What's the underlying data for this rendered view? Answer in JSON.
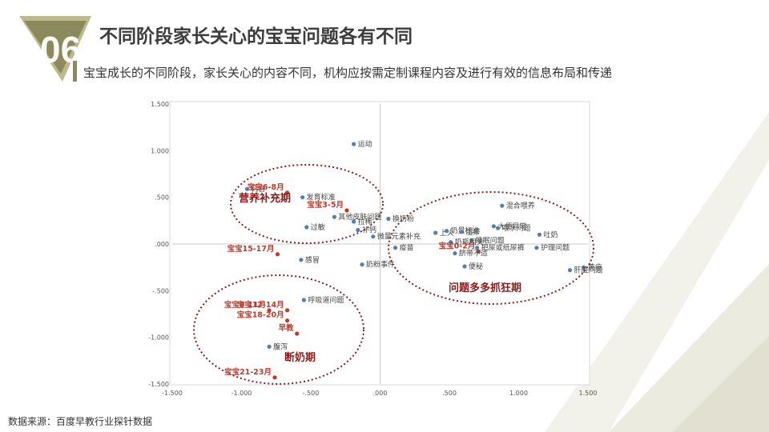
{
  "page": {
    "badge_number": "06",
    "title": "不同阶段家长关心的宝宝问题各有不同",
    "subtitle": "宝宝成长的不同阶段，家长关心的内容不同，机构应按需定制课程内容及进行有效的信息布局和传递",
    "source": "数据来源：百度早教行业探针数据",
    "colors": {
      "accent": "#8a8a5c",
      "point_blue": "#4f7fb6",
      "point_red": "#c0392b",
      "ellipse": "#8b1a1a"
    }
  },
  "chart_data": {
    "type": "scatter",
    "xlim": [
      -1.5,
      1.5
    ],
    "ylim": [
      -1.5,
      1.5
    ],
    "x_ticks": [
      "-1.500",
      "-1.000",
      "-.500",
      ".000",
      ".500",
      "1.000",
      "1.500"
    ],
    "y_ticks": [
      "1.500",
      "1.000",
      ".500",
      ".000",
      "-.500",
      "-1.000",
      "-1.500"
    ],
    "points": [
      {
        "label": "运动",
        "x": -0.19,
        "y": 1.07,
        "kind": "topic"
      },
      {
        "label": "钙含",
        "x": -0.96,
        "y": 0.59,
        "kind": "topic"
      },
      {
        "label": "宝宝6-8月",
        "x": -0.67,
        "y": 0.55,
        "kind": "stage"
      },
      {
        "label": "发育标准",
        "x": -0.56,
        "y": 0.5,
        "kind": "topic"
      },
      {
        "label": "宝宝3-5月",
        "x": -0.24,
        "y": 0.36,
        "kind": "stage"
      },
      {
        "label": "其他皮肤问题",
        "x": -0.33,
        "y": 0.29,
        "kind": "topic"
      },
      {
        "label": "拉稀",
        "x": -0.19,
        "y": 0.24,
        "kind": "topic"
      },
      {
        "label": "过敏",
        "x": -0.53,
        "y": 0.18,
        "kind": "topic"
      },
      {
        "label": "补钙",
        "x": -0.16,
        "y": 0.15,
        "kind": "topic"
      },
      {
        "label": "微量元素补充",
        "x": -0.05,
        "y": 0.08,
        "kind": "topic"
      },
      {
        "label": "换奶粉",
        "x": 0.06,
        "y": 0.27,
        "kind": "topic"
      },
      {
        "label": "疫苗",
        "x": 0.11,
        "y": -0.04,
        "kind": "topic"
      },
      {
        "label": "上火",
        "x": 0.4,
        "y": 0.12,
        "kind": "topic"
      },
      {
        "label": "奶量标准",
        "x": 0.48,
        "y": 0.14,
        "kind": "topic"
      },
      {
        "label": "湿疹",
        "x": 0.59,
        "y": 0.13,
        "kind": "topic"
      },
      {
        "label": "大便异常",
        "x": 0.82,
        "y": 0.19,
        "kind": "topic"
      },
      {
        "label": "混合喂养",
        "x": 0.88,
        "y": 0.41,
        "kind": "topic"
      },
      {
        "label": "喂水问题",
        "x": 0.85,
        "y": 0.17,
        "kind": "topic"
      },
      {
        "label": "吐奶",
        "x": 1.15,
        "y": 0.1,
        "kind": "topic"
      },
      {
        "label": "睡眠问题",
        "x": 0.66,
        "y": 0.04,
        "kind": "topic"
      },
      {
        "label": "奶瓶相关",
        "x": 0.51,
        "y": 0.02,
        "kind": "topic"
      },
      {
        "label": "把尿或纸尿裤",
        "x": 0.7,
        "y": -0.04,
        "kind": "topic"
      },
      {
        "label": "护理问题",
        "x": 1.13,
        "y": -0.04,
        "kind": "topic"
      },
      {
        "label": "宝宝0-2月",
        "x": 0.71,
        "y": -0.08,
        "kind": "stage"
      },
      {
        "label": "脐带不适",
        "x": 0.54,
        "y": -0.1,
        "kind": "topic"
      },
      {
        "label": "黄疸",
        "x": 1.47,
        "y": -0.25,
        "kind": "topic"
      },
      {
        "label": "便秘",
        "x": 0.61,
        "y": -0.24,
        "kind": "topic"
      },
      {
        "label": "肝脏问题",
        "x": 1.37,
        "y": -0.28,
        "kind": "topic"
      },
      {
        "label": "宝宝15-17月",
        "x": -0.74,
        "y": -0.11,
        "kind": "stage"
      },
      {
        "label": "感冒",
        "x": -0.57,
        "y": -0.17,
        "kind": "topic"
      },
      {
        "label": "奶粉事件",
        "x": -0.13,
        "y": -0.22,
        "kind": "topic"
      },
      {
        "label": "呼吸道问题",
        "x": -0.55,
        "y": -0.6,
        "kind": "topic"
      },
      {
        "label": "宝宝9-11月",
        "x": -0.8,
        "y": -0.71,
        "kind": "stage"
      },
      {
        "label": "宝宝12-14月",
        "x": -0.67,
        "y": -0.71,
        "kind": "stage"
      },
      {
        "label": "宝宝18-20月",
        "x": -0.67,
        "y": -0.82,
        "kind": "stage"
      },
      {
        "label": "早教",
        "x": -0.6,
        "y": -0.96,
        "kind": "stage"
      },
      {
        "label": "腹泻",
        "x": -0.8,
        "y": -1.1,
        "kind": "topic"
      },
      {
        "label": "宝宝21-23月",
        "x": -0.76,
        "y": -1.43,
        "kind": "stage"
      }
    ],
    "clusters": [
      {
        "label": "营养补充期"
      },
      {
        "label": "问题多多抓狂期"
      },
      {
        "label": "断奶期"
      }
    ]
  }
}
